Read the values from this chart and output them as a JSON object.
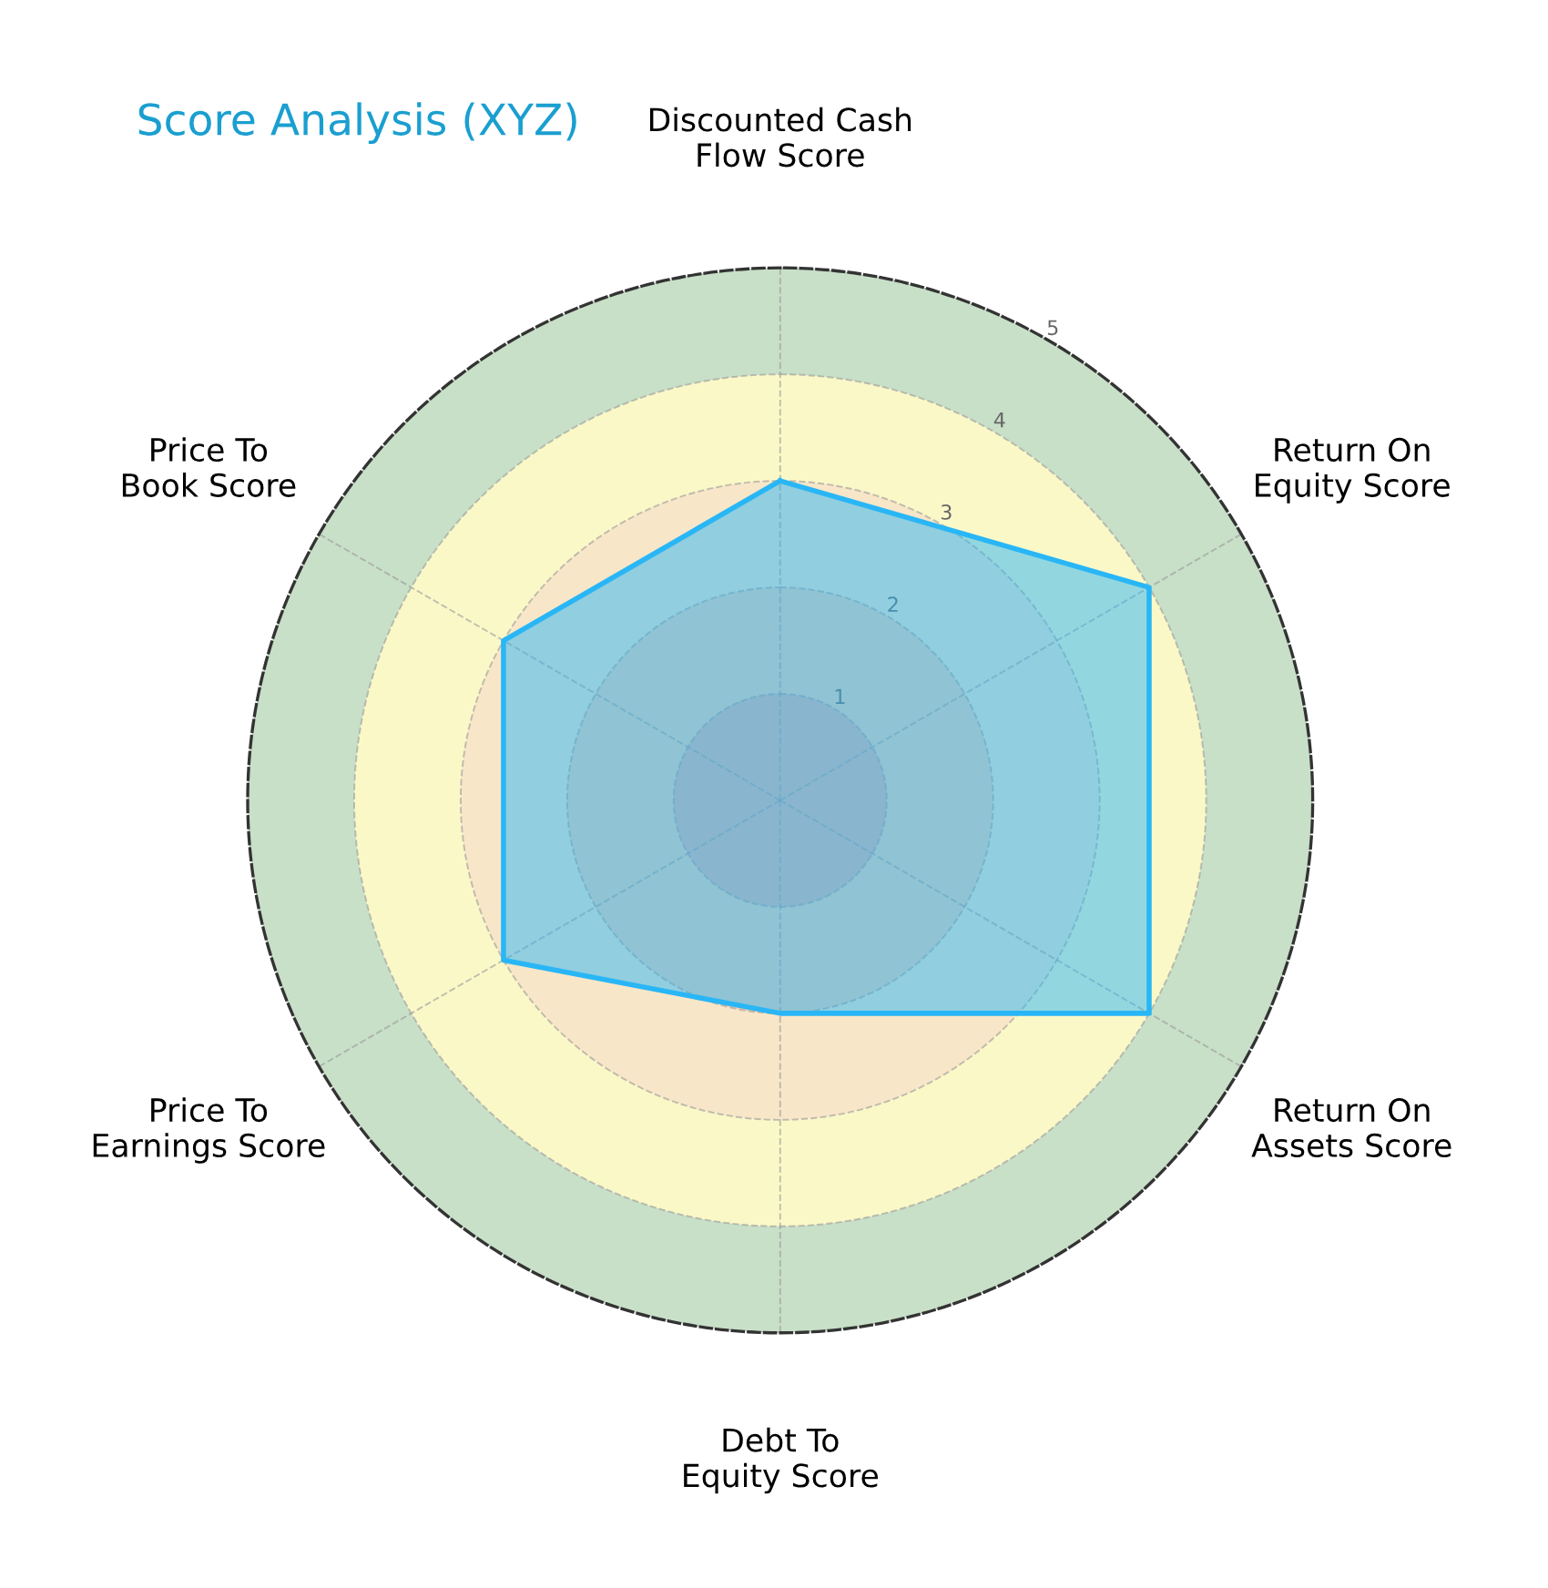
{
  "chart_data": {
    "type": "radar",
    "title": "Score Analysis (XYZ)",
    "categories": [
      "Discounted Cash\nFlow Score",
      "Return On\nEquity Score",
      "Return On\nAssets Score",
      "Debt To\nEquity Score",
      "Price To\nEarnings Score",
      "Price To\nBook Score"
    ],
    "series": [
      {
        "color": "#29b6f6",
        "values": [
          3,
          4,
          4,
          2,
          3,
          3
        ]
      }
    ],
    "ylim": [
      0,
      5
    ],
    "yticks": [
      1,
      2,
      3,
      4,
      5
    ],
    "grid": true,
    "line_style": "solid",
    "marker": "none"
  }
}
